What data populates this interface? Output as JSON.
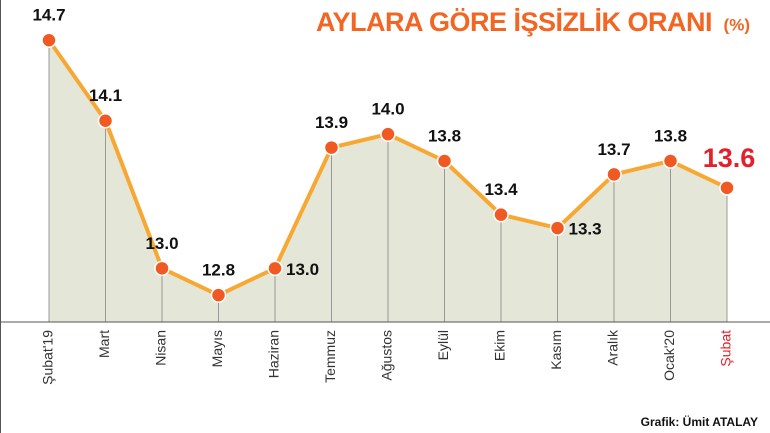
{
  "chart_data": {
    "type": "line",
    "title": "AYLARA GÖRE İŞSİZLİK ORANI",
    "unit": "(%)",
    "credit": "Grafik: Ümit ATALAY",
    "categories": [
      "Şubat'19",
      "Mart",
      "Nisan",
      "Mayıs",
      "Haziran",
      "Temmuz",
      "Ağustos",
      "Eylül",
      "Ekim",
      "Kasım",
      "Aralık",
      "Ocak'20",
      "Şubat"
    ],
    "series": [
      {
        "color": "#f7a832",
        "marker_color": "#f05a22",
        "values": [
          14.7,
          14.1,
          13.0,
          12.8,
          13.0,
          13.9,
          14.0,
          13.8,
          13.4,
          13.3,
          13.7,
          13.8,
          13.6
        ],
        "value_labels": [
          "14.7",
          "14.1",
          "13.0",
          "12.8",
          "13.0",
          "13.9",
          "14.0",
          "13.8",
          "13.4",
          "13.3",
          "13.7",
          "13.8",
          "13.6"
        ]
      }
    ],
    "highlight_color": "#e4202a",
    "area_color": "#e4e6d8",
    "ylim": [
      12.6,
      15.0
    ]
  }
}
